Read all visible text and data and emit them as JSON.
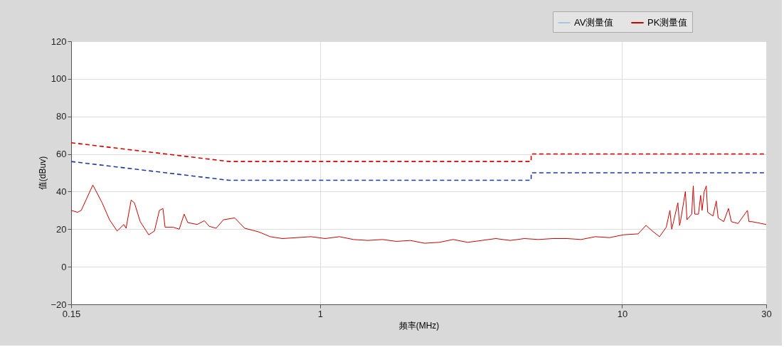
{
  "chart_data": {
    "type": "line",
    "xlabel": "频率(MHz)",
    "ylabel": "值(dBuv)",
    "log": "x",
    "xlim": [
      0.15,
      30
    ],
    "xticks": [
      0.15,
      1,
      10,
      30
    ],
    "ylim": [
      -20,
      120
    ],
    "yticks": [
      -20,
      0,
      20,
      40,
      60,
      80,
      100,
      120
    ],
    "grid": true,
    "legend": "top right",
    "marker": "none",
    "series": [
      {
        "name": "AV测量值",
        "color": "#a8c8e8"
      },
      {
        "name": "PK测量值",
        "color": "#cc0000",
        "line_style": "solid",
        "x": [
          0.15,
          0.1575,
          0.162,
          0.177,
          0.19,
          0.201,
          0.213,
          0.224,
          0.228,
          0.237,
          0.243,
          0.254,
          0.271,
          0.283,
          0.294,
          0.302,
          0.307,
          0.327,
          0.342,
          0.355,
          0.365,
          0.392,
          0.414,
          0.43,
          0.453,
          0.479,
          0.522,
          0.563,
          0.628,
          0.684,
          0.751,
          0.837,
          0.933,
          1.04,
          1.16,
          1.29,
          1.44,
          1.61,
          1.79,
          1.99,
          2.22,
          2.48,
          2.76,
          3.08,
          3.43,
          3.82,
          4.26,
          4.75,
          5.29,
          5.9,
          6.57,
          7.32,
          8.16,
          9.09,
          10.1,
          11.3,
          12.0,
          12.6,
          13.3,
          14.0,
          14.4,
          14.6,
          14.8,
          15.3,
          15.5,
          15.6,
          16.2,
          16.4,
          17.0,
          17.2,
          17.4,
          17.9,
          18.2,
          18.4,
          18.7,
          19.0,
          19.2,
          20.0,
          20.5,
          20.8,
          21.7,
          22.5,
          23.0,
          24.2,
          26.0,
          26.3,
          26.9,
          30
        ],
        "values": [
          30,
          29,
          30,
          43.5,
          34,
          25,
          19,
          22.5,
          20.5,
          35.5,
          34,
          24,
          17,
          19,
          30,
          31,
          21,
          21,
          20,
          28,
          23.5,
          22.5,
          24.5,
          21.5,
          20.5,
          25,
          26,
          20.5,
          18.5,
          16,
          15,
          15.5,
          16,
          15,
          16,
          14.5,
          14,
          14.5,
          13.5,
          14,
          12.5,
          13,
          14.5,
          13,
          14,
          15,
          14,
          15,
          14.5,
          15,
          15,
          14.5,
          16,
          15.5,
          17,
          17.5,
          22,
          19,
          16,
          21,
          30,
          20,
          24,
          34,
          22,
          24,
          40,
          25,
          28,
          43,
          28,
          28,
          38,
          30,
          40,
          43,
          29,
          27,
          35,
          26,
          24,
          31,
          24,
          23,
          30,
          24,
          24,
          22.5
        ]
      },
      {
        "color": "#d40000",
        "line_style": "dashed",
        "x": [
          0.15,
          0.5,
          5,
          5,
          30
        ],
        "values": [
          66,
          56,
          56,
          60,
          60
        ]
      },
      {
        "color": "#1f3a9e",
        "line_style": "dashed",
        "x": [
          0.15,
          0.5,
          5,
          5,
          30
        ],
        "values": [
          56,
          46,
          46,
          50,
          50
        ]
      }
    ]
  }
}
